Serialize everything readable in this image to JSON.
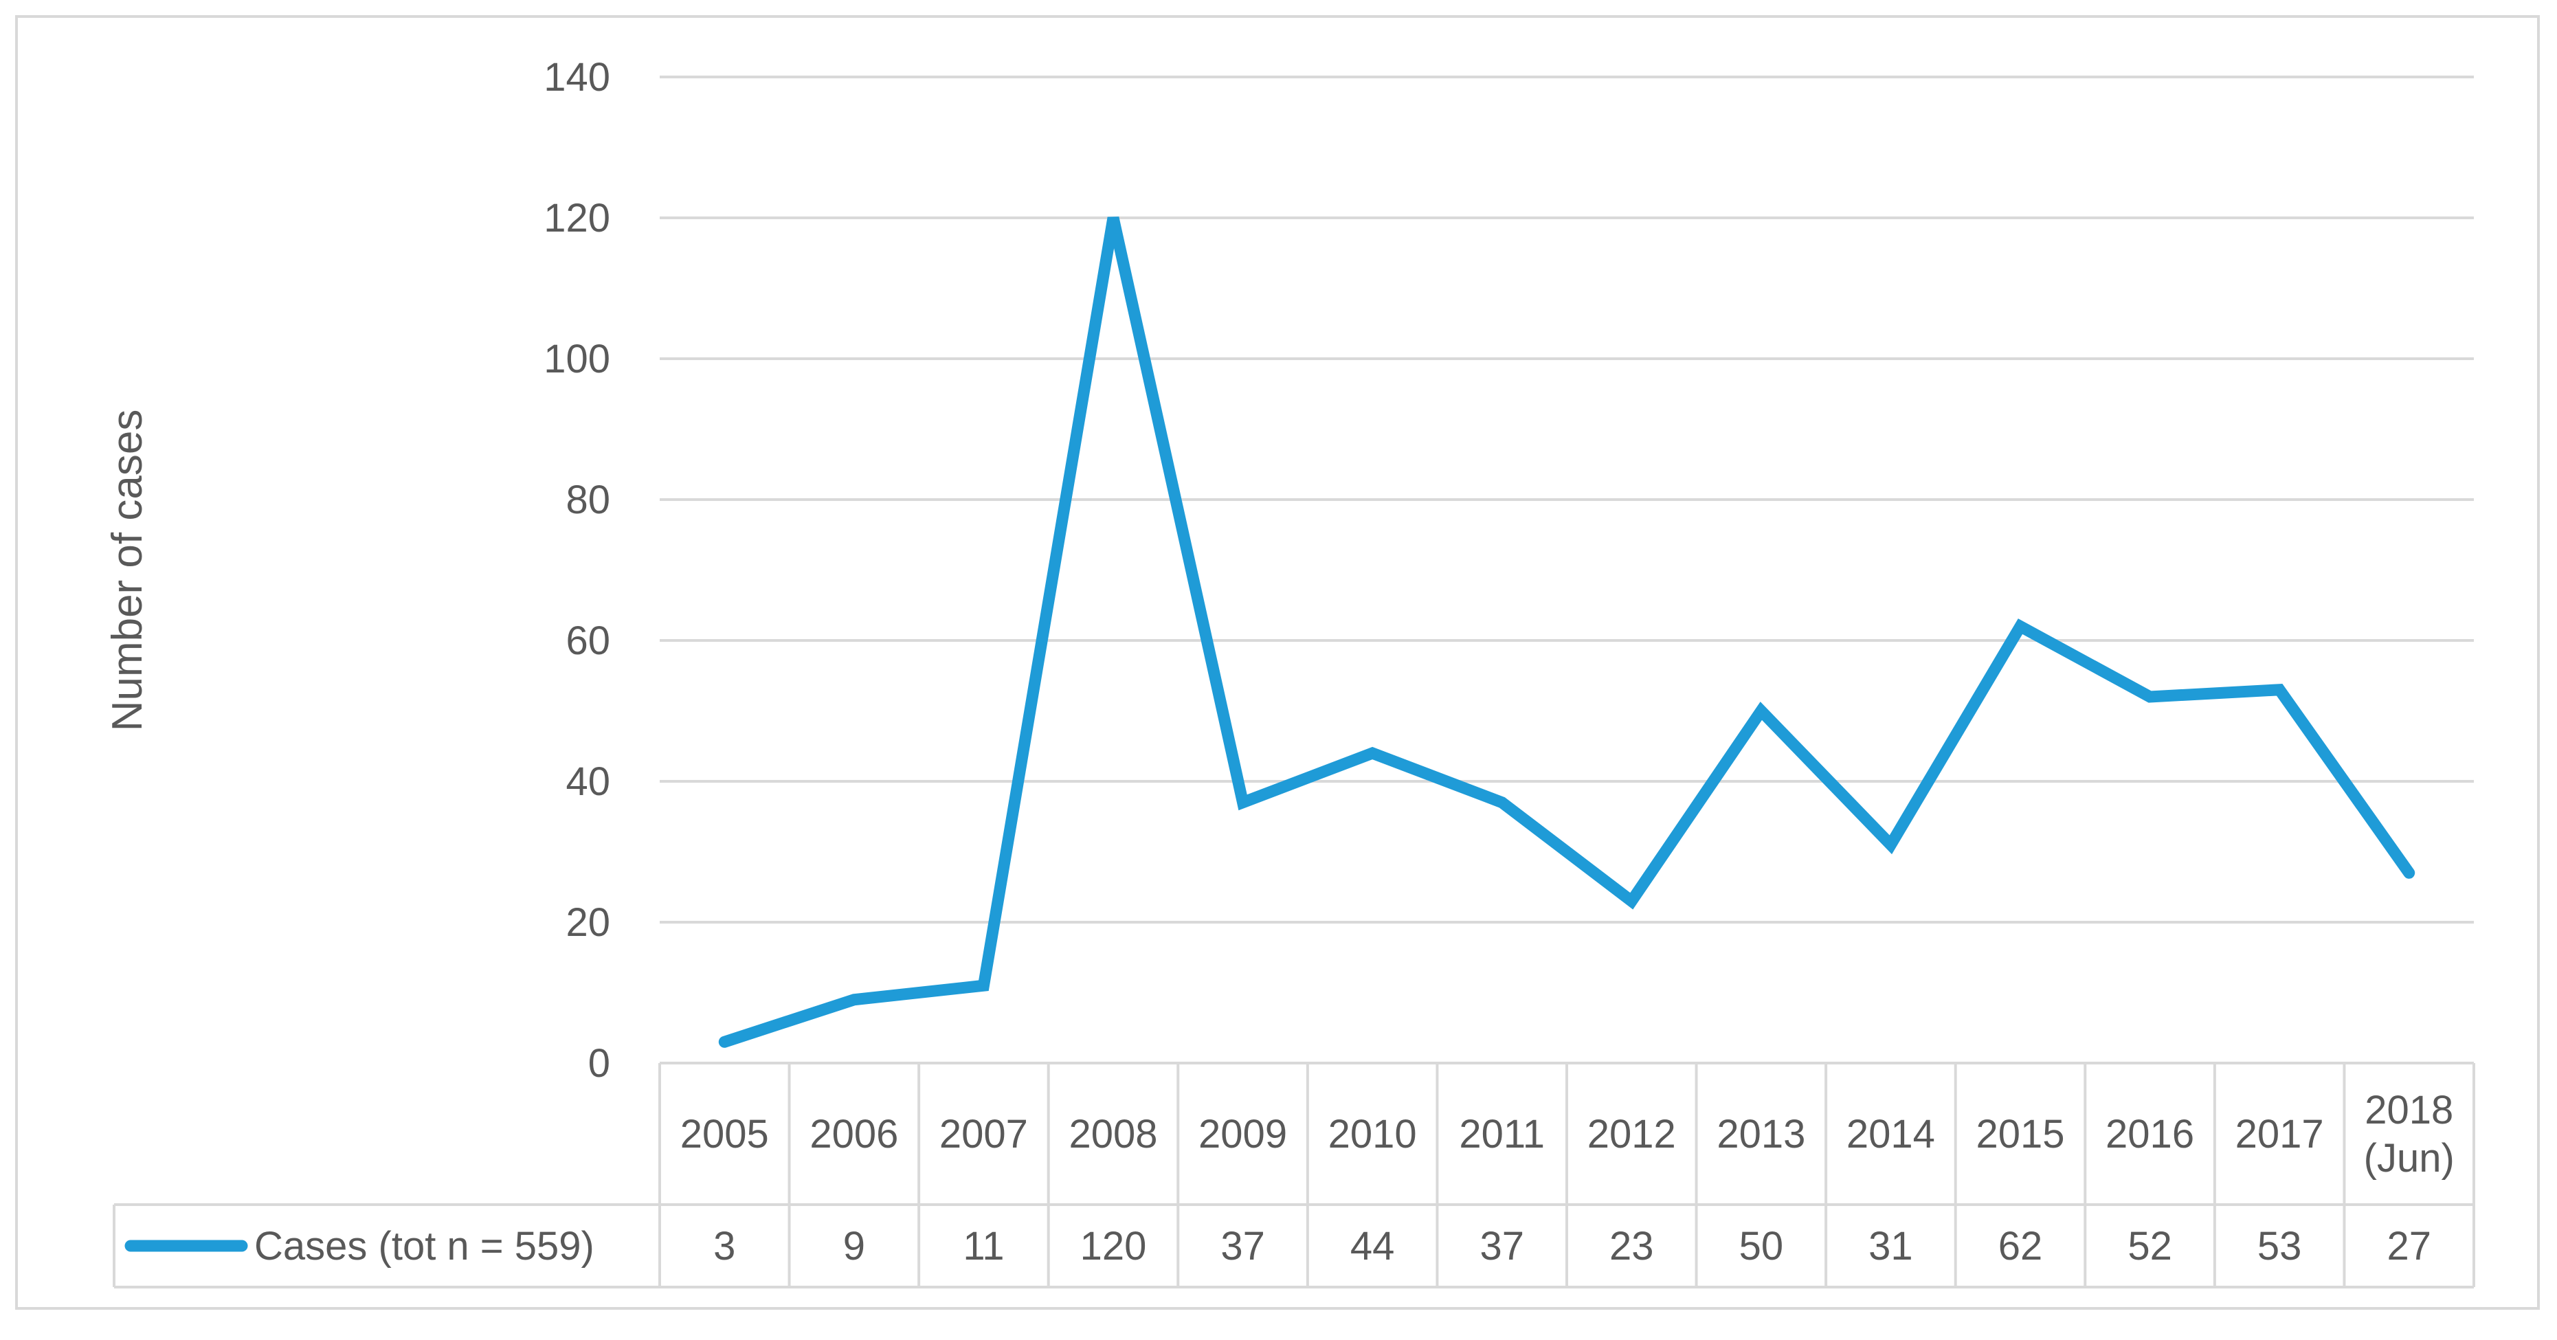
{
  "chart_data": {
    "type": "line",
    "title": "",
    "xlabel": "",
    "ylabel": "Number of cases",
    "ylim": [
      0,
      140
    ],
    "yticks": [
      0,
      20,
      40,
      60,
      80,
      100,
      120,
      140
    ],
    "grid": true,
    "categories": [
      [
        "2005"
      ],
      [
        "2006"
      ],
      [
        "2007"
      ],
      [
        "2008"
      ],
      [
        "2009"
      ],
      [
        "2010"
      ],
      [
        "2011"
      ],
      [
        "2012"
      ],
      [
        "2013"
      ],
      [
        "2014"
      ],
      [
        "2015"
      ],
      [
        "2016"
      ],
      [
        "2017"
      ],
      [
        "2018",
        "(Jun)"
      ]
    ],
    "series": [
      {
        "name": "Cases (tot n = 559)",
        "values": [
          3,
          9,
          11,
          120,
          37,
          44,
          37,
          23,
          50,
          31,
          62,
          52,
          53,
          27
        ]
      }
    ],
    "data_table": true,
    "colors": {
      "series": "#1f9bd7",
      "grid": "#d9d9d9",
      "text": "#595959",
      "border": "#d9d9d9"
    }
  }
}
